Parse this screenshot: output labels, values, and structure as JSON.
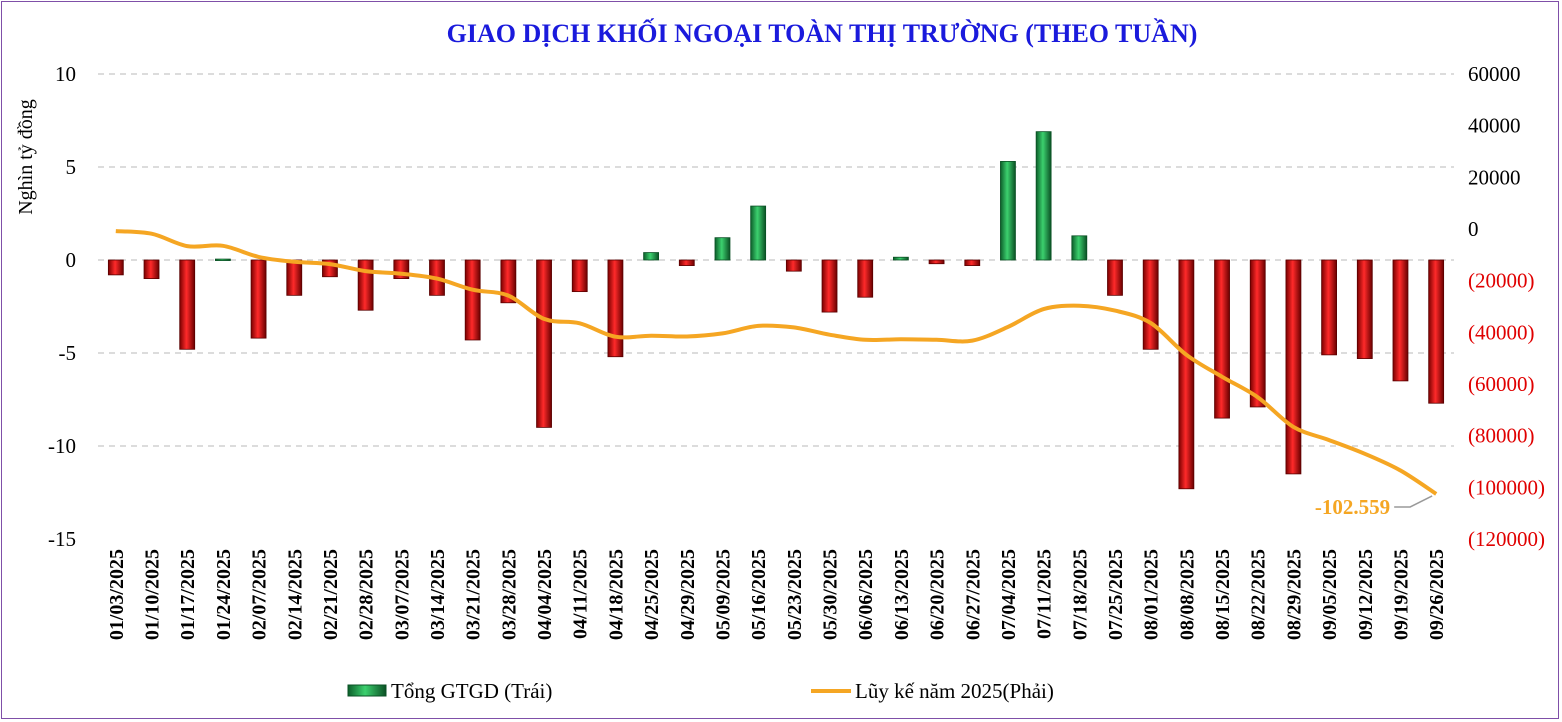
{
  "chart_data": {
    "type": "bar",
    "title": "GIAO DỊCH KHỐI NGOẠI TOÀN THỊ TRƯỜNG (THEO TUẦN)",
    "ylabel": "Nghìn tỷ đồng",
    "ylim": [
      -15,
      10
    ],
    "yticks": [
      10,
      5,
      0,
      -5,
      -10,
      -15
    ],
    "y2lim": [
      -120000,
      60000
    ],
    "y2ticks": [
      60000,
      40000,
      20000,
      0,
      -20000,
      -40000,
      -60000,
      -80000,
      -100000,
      -120000
    ],
    "y2tick_labels": [
      "60000",
      "40000",
      "20000",
      "0",
      "(20000)",
      "(40000)",
      "(60000)",
      "(80000)",
      "(100000)",
      "(120000)"
    ],
    "grid": true,
    "legend_position": "bottom",
    "categories": [
      "01/03/2025",
      "01/10/2025",
      "01/17/2025",
      "01/24/2025",
      "02/07/2025",
      "02/14/2025",
      "02/21/2025",
      "02/28/2025",
      "03/07/2025",
      "03/14/2025",
      "03/21/2025",
      "03/28/2025",
      "04/04/2025",
      "04/11/2025",
      "04/18/2025",
      "04/25/2025",
      "04/29/2025",
      "05/09/2025",
      "05/16/2025",
      "05/23/2025",
      "05/30/2025",
      "06/06/2025",
      "06/13/2025",
      "06/20/2025",
      "06/27/2025",
      "07/04/2025",
      "07/11/2025",
      "07/18/2025",
      "07/25/2025",
      "08/01/2025",
      "08/08/2025",
      "08/15/2025",
      "08/22/2025",
      "08/29/2025",
      "09/05/2025",
      "09/12/2025",
      "09/19/2025",
      "09/26/2025"
    ],
    "series": [
      {
        "name": "Tổng GTGD (Trái)",
        "axis": "left",
        "kind": "bar",
        "values": [
          -0.8,
          -1.0,
          -4.8,
          0.05,
          -4.2,
          -1.9,
          -0.9,
          -2.7,
          -1.0,
          -1.9,
          -4.3,
          -2.3,
          -9.0,
          -1.7,
          -5.2,
          0.4,
          -0.3,
          1.2,
          2.9,
          -0.6,
          -2.8,
          -2.0,
          0.15,
          -0.2,
          -0.3,
          5.3,
          6.9,
          1.3,
          -1.9,
          -4.8,
          -12.3,
          -8.5,
          -7.9,
          -11.5,
          -5.1,
          -5.3,
          -6.5,
          -7.7
        ]
      },
      {
        "name": "Lũy kế năm 2025(Phải)",
        "axis": "right",
        "kind": "line",
        "values": [
          -800,
          -1800,
          -6600,
          -6500,
          -10800,
          -12700,
          -13600,
          -16300,
          -17300,
          -19200,
          -23500,
          -25800,
          -34800,
          -36500,
          -41700,
          -41300,
          -41600,
          -40400,
          -37500,
          -38100,
          -40900,
          -42900,
          -42700,
          -42900,
          -43200,
          -37900,
          -31000,
          -29700,
          -31600,
          -36400,
          -48700,
          -57200,
          -65100,
          -76600,
          -81700,
          -87000,
          -93500,
          -102559
        ]
      }
    ],
    "colors": {
      "positive": "#1a9a48",
      "negative": "#cc0000",
      "line": "#f5a623",
      "title": "#1a1adc",
      "right_axis_negative": "#e00000"
    },
    "annotations": [
      {
        "text": "-102.559",
        "series": 1,
        "point_index": 37
      }
    ]
  }
}
